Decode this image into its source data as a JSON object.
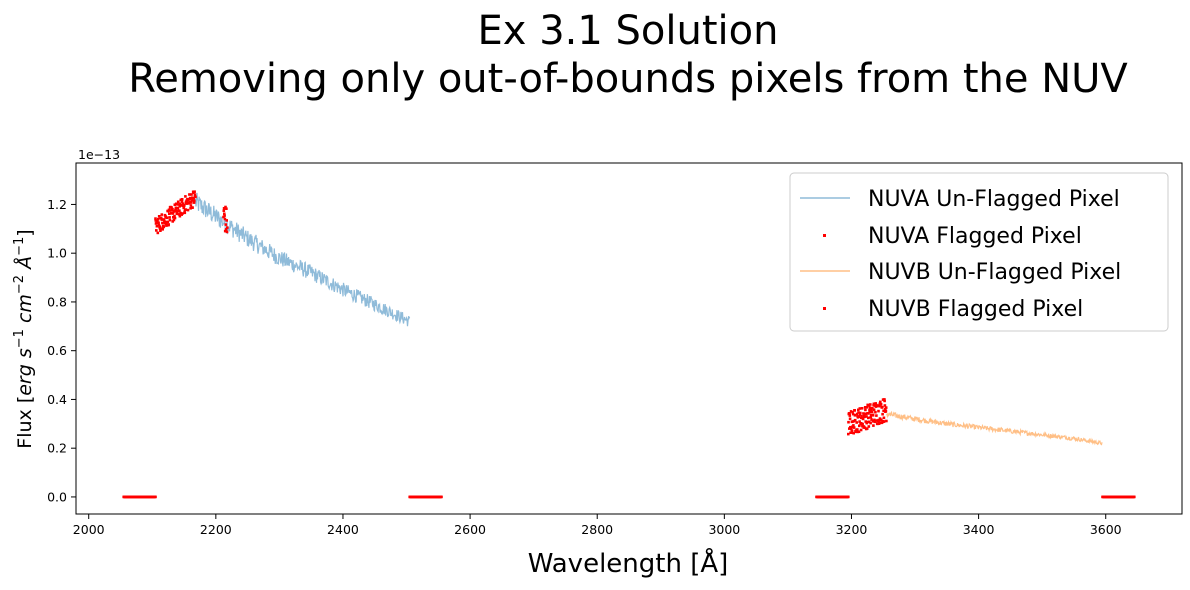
{
  "chart_data": {
    "type": "scatter",
    "title_lines": [
      "Ex 3.1 Solution",
      "Removing only out-of-bounds pixels from the NUV"
    ],
    "xlabel": "Wavelength [Å]",
    "ylabel_parts": {
      "prefix": "Flux [",
      "erg": "erg s",
      "exp1": "−1",
      "cm": " cm",
      "exp2": "−2",
      "ang": " Å",
      "exp3": "−1",
      "suffix": "]"
    },
    "y_offset_label": "1e−13",
    "xlim": [
      1980,
      3720
    ],
    "ylim": [
      -0.07,
      1.37
    ],
    "x_ticks": [
      2000,
      2200,
      2400,
      2600,
      2800,
      3000,
      3200,
      3400,
      3600
    ],
    "x_tick_labels": [
      "2000",
      "2200",
      "2400",
      "2600",
      "2800",
      "3000",
      "3200",
      "3400",
      "3600"
    ],
    "y_ticks": [
      0.0,
      0.2,
      0.4,
      0.6,
      0.8,
      1.0,
      1.2
    ],
    "y_tick_labels": [
      "0.0",
      "0.2",
      "0.4",
      "0.6",
      "0.8",
      "1.0",
      "1.2"
    ],
    "grid": false,
    "legend_position": "top-right",
    "series": [
      {
        "name": "NUVA Un-Flagged Pixel",
        "kind": "line",
        "color": "#1f77b4",
        "alpha": 0.5,
        "x": [
          2168,
          2200,
          2250,
          2300,
          2350,
          2400,
          2450,
          2505
        ],
        "y": [
          1.21,
          1.15,
          1.06,
          0.98,
          0.92,
          0.85,
          0.79,
          0.72
        ]
      },
      {
        "name": "NUVA Flagged Pixel",
        "kind": "scatter",
        "color": "#ff0000",
        "clusters": [
          {
            "x_range": [
              2105,
              2168
            ],
            "y_start": 1.11,
            "y_end": 1.23,
            "jitter": 0.035,
            "count": 140
          },
          {
            "x_range": [
              2212,
              2218
            ],
            "y_start": 1.16,
            "y_end": 1.12,
            "jitter": 0.06,
            "count": 14
          },
          {
            "x_range": [
              2055,
              2105
            ],
            "y_start": 0.0,
            "y_end": 0.0,
            "jitter": 0.0,
            "count": 60
          },
          {
            "x_range": [
              2505,
              2555
            ],
            "y_start": 0.0,
            "y_end": 0.0,
            "jitter": 0.0,
            "count": 60
          }
        ]
      },
      {
        "name": "NUVB Un-Flagged Pixel",
        "kind": "line",
        "color": "#ff7f0e",
        "alpha": 0.5,
        "x": [
          3255,
          3300,
          3350,
          3400,
          3450,
          3500,
          3550,
          3595
        ],
        "y": [
          0.34,
          0.32,
          0.3,
          0.285,
          0.27,
          0.255,
          0.24,
          0.22
        ]
      },
      {
        "name": "NUVB Flagged Pixel",
        "kind": "scatter",
        "color": "#ff0000",
        "clusters": [
          {
            "x_range": [
              3195,
              3255
            ],
            "y_start": 0.3,
            "y_end": 0.36,
            "jitter": 0.05,
            "count": 150
          },
          {
            "x_range": [
              3145,
              3195
            ],
            "y_start": 0.0,
            "y_end": 0.0,
            "jitter": 0.0,
            "count": 60
          },
          {
            "x_range": [
              3595,
              3645
            ],
            "y_start": 0.0,
            "y_end": 0.0,
            "jitter": 0.0,
            "count": 60
          }
        ]
      }
    ]
  }
}
